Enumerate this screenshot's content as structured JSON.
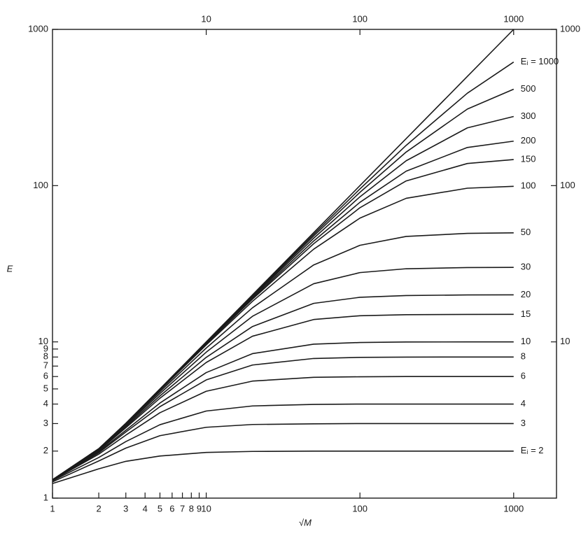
{
  "chart_data": {
    "type": "line",
    "x_label": "√M",
    "y_label": "E",
    "log_x": true,
    "log_y": true,
    "color": "#1a1a1a",
    "xlim": [
      1,
      1900
    ],
    "ylim": [
      1,
      1000
    ],
    "xticks": [
      1,
      2,
      3,
      4,
      5,
      6,
      7,
      8,
      9,
      10,
      100,
      1000
    ],
    "yticks": [
      1,
      2,
      3,
      4,
      5,
      6,
      7,
      8,
      9,
      10,
      100,
      1000
    ],
    "x2ticks": [
      10,
      100,
      1000
    ],
    "y2lim": [
      1,
      1000
    ],
    "y2ticks": [
      10,
      100,
      1000
    ],
    "x": [
      1,
      2,
      3,
      5,
      10,
      20,
      50,
      100,
      200,
      500,
      1000
    ],
    "series": [
      {
        "values": [
          1.31,
          2.07,
          3.01,
          5,
          10,
          20,
          50,
          100,
          200,
          500,
          1000
        ]
      },
      {
        "name": "Eᵢ = 1000",
        "values": [
          1.31,
          2.07,
          3.01,
          4.99,
          9.95,
          19.81,
          48.79,
          95.2,
          181.1,
          390.5,
          618.2
        ]
      },
      {
        "name": "500",
        "values": [
          1.31,
          2.07,
          3.0,
          4.98,
          9.91,
          19.62,
          47.6,
          90.6,
          164.1,
          309.2,
          414.3
        ]
      },
      {
        "name": "300",
        "values": [
          1.31,
          2.07,
          3.0,
          4.97,
          9.85,
          19.38,
          46.07,
          84.8,
          144.3,
          234.3,
          277.1
        ]
      },
      {
        "name": "200",
        "values": [
          1.31,
          2.07,
          2.99,
          4.95,
          9.78,
          19.07,
          44.23,
          78.2,
          123.8,
          175.5,
          192.6
        ]
      },
      {
        "name": "150",
        "values": [
          1.31,
          2.06,
          2.99,
          4.93,
          9.7,
          18.77,
          42.48,
          72.2,
          107.2,
          138.6,
          146.8
        ]
      },
      {
        "name": "100",
        "values": [
          1.31,
          2.06,
          2.98,
          4.9,
          9.56,
          18.18,
          39.19,
          61.97,
          82.97,
          96.3,
          99.0
        ]
      },
      {
        "name": "50",
        "values": [
          1.31,
          2.05,
          2.96,
          4.8,
          9.13,
          16.53,
          31.07,
          41.5,
          47.3,
          49.5,
          49.88
        ]
      },
      {
        "name": "30",
        "values": [
          1.31,
          2.04,
          2.92,
          4.67,
          8.59,
          14.58,
          23.56,
          27.76,
          29.38,
          29.9,
          29.97
        ]
      },
      {
        "name": "20",
        "values": [
          1.31,
          2.03,
          2.87,
          4.51,
          7.96,
          12.54,
          17.64,
          19.29,
          19.8,
          19.97,
          20
        ]
      },
      {
        "name": "15",
        "values": [
          1.31,
          2.01,
          2.82,
          4.36,
          7.38,
          10.87,
          13.9,
          14.7,
          14.93,
          14.99,
          15
        ]
      },
      {
        "name": "10",
        "values": [
          1.3,
          1.98,
          2.72,
          4.06,
          6.36,
          8.41,
          9.67,
          9.91,
          9.98,
          10,
          10
        ]
      },
      {
        "name": "8",
        "values": [
          1.3,
          1.95,
          2.65,
          3.85,
          5.71,
          7.11,
          7.83,
          7.96,
          7.99,
          8,
          8
        ]
      },
      {
        "name": "6",
        "values": [
          1.3,
          1.91,
          2.53,
          3.52,
          4.83,
          5.61,
          5.93,
          5.98,
          6,
          6,
          6
        ]
      },
      {
        "name": "4",
        "values": [
          1.29,
          1.82,
          2.3,
          2.95,
          3.61,
          3.89,
          3.98,
          4,
          4,
          4,
          4
        ]
      },
      {
        "name": "3",
        "values": [
          1.27,
          1.73,
          2.09,
          2.51,
          2.84,
          2.96,
          2.99,
          3,
          3,
          3,
          3
        ]
      },
      {
        "name": "Eᵢ = 2",
        "values": [
          1.24,
          1.54,
          1.72,
          1.86,
          1.96,
          1.99,
          2,
          2,
          2,
          2,
          2
        ]
      }
    ]
  }
}
